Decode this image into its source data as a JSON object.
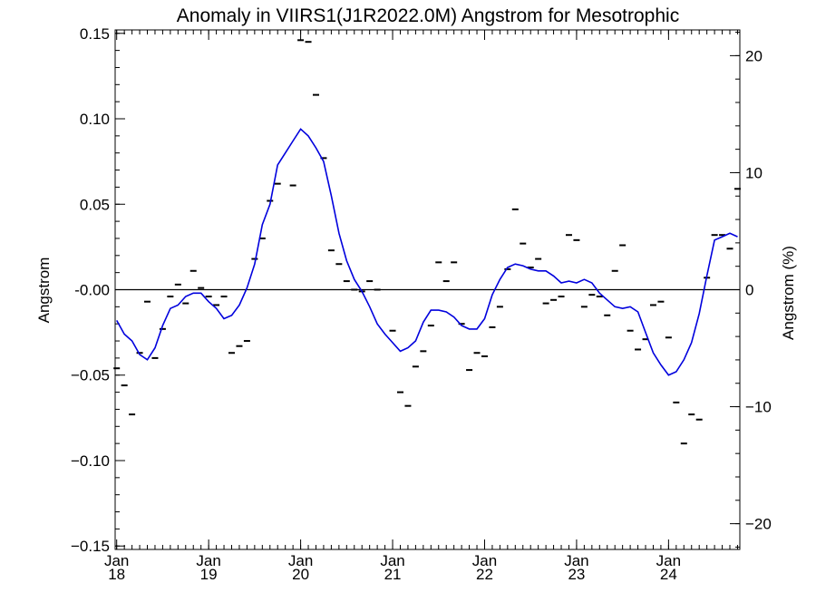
{
  "chart_data": {
    "type": "line",
    "title": "Anomaly in VIIRS1(J1R2022.0M) Angstrom for Mesotrophic",
    "ylabel": "Angstrom",
    "y2label": "Angstrom (%)",
    "ylim": [
      -0.152,
      0.152
    ],
    "y2lim": [
      -22.2,
      22.2
    ],
    "xlim": [
      "2018-01",
      "2024-10"
    ],
    "grid": false,
    "yticks": [
      {
        "value": 0.15,
        "label": "0.15"
      },
      {
        "value": 0.1,
        "label": "0.10"
      },
      {
        "value": 0.05,
        "label": "0.05"
      },
      {
        "value": 0.0,
        "label": "-0.00"
      },
      {
        "value": -0.05,
        "label": "−0.05"
      },
      {
        "value": -0.1,
        "label": "−0.10"
      },
      {
        "value": -0.15,
        "label": "−0.15"
      }
    ],
    "y2ticks": [
      {
        "value": 20,
        "label": "20"
      },
      {
        "value": 10,
        "label": "10"
      },
      {
        "value": 0,
        "label": "0"
      },
      {
        "value": -10,
        "label": "−10"
      },
      {
        "value": -20,
        "label": "−20"
      }
    ],
    "xticks": [
      {
        "date": "2018-01",
        "month": "Jan",
        "year": "18"
      },
      {
        "date": "2019-01",
        "month": "Jan",
        "year": "19"
      },
      {
        "date": "2020-01",
        "month": "Jan",
        "year": "20"
      },
      {
        "date": "2021-01",
        "month": "Jan",
        "year": "21"
      },
      {
        "date": "2022-01",
        "month": "Jan",
        "year": "22"
      },
      {
        "date": "2023-01",
        "month": "Jan",
        "year": "23"
      },
      {
        "date": "2024-01",
        "month": "Jan",
        "year": "24"
      }
    ],
    "colors": {
      "line": "#0000dd",
      "points": "#000000",
      "zero_line": "#000000"
    },
    "series": [
      {
        "style": "dash-markers",
        "points": [
          [
            "2018-01",
            -0.046
          ],
          [
            "2018-02",
            -0.056
          ],
          [
            "2018-03",
            -0.073
          ],
          [
            "2018-04",
            -0.037
          ],
          [
            "2018-05",
            -0.007
          ],
          [
            "2018-06",
            -0.04
          ],
          [
            "2018-07",
            -0.023
          ],
          [
            "2018-08",
            -0.004
          ],
          [
            "2018-09",
            0.003
          ],
          [
            "2018-10",
            -0.008
          ],
          [
            "2018-11",
            0.011
          ],
          [
            "2018-12",
            0.001
          ],
          [
            "2019-01",
            -0.004
          ],
          [
            "2019-02",
            -0.009
          ],
          [
            "2019-03",
            -0.004
          ],
          [
            "2019-04",
            -0.037
          ],
          [
            "2019-05",
            -0.033
          ],
          [
            "2019-06",
            -0.03
          ],
          [
            "2019-07",
            0.018
          ],
          [
            "2019-08",
            0.03
          ],
          [
            "2019-09",
            0.052
          ],
          [
            "2019-10",
            0.062
          ],
          [
            "2019-12",
            0.061
          ],
          [
            "2020-01",
            0.146
          ],
          [
            "2020-02",
            0.145
          ],
          [
            "2020-03",
            0.114
          ],
          [
            "2020-04",
            0.077
          ],
          [
            "2020-05",
            0.023
          ],
          [
            "2020-06",
            0.015
          ],
          [
            "2020-07",
            0.005
          ],
          [
            "2020-08",
            0.0
          ],
          [
            "2020-09",
            -0.001
          ],
          [
            "2020-10",
            0.005
          ],
          [
            "2020-11",
            0.0
          ],
          [
            "2021-01",
            -0.024
          ],
          [
            "2021-02",
            -0.06
          ],
          [
            "2021-03",
            -0.068
          ],
          [
            "2021-04",
            -0.045
          ],
          [
            "2021-05",
            -0.036
          ],
          [
            "2021-06",
            -0.021
          ],
          [
            "2021-07",
            0.016
          ],
          [
            "2021-08",
            0.005
          ],
          [
            "2021-09",
            0.016
          ],
          [
            "2021-10",
            -0.02
          ],
          [
            "2021-11",
            -0.047
          ],
          [
            "2021-12",
            -0.037
          ],
          [
            "2022-01",
            -0.039
          ],
          [
            "2022-02",
            -0.022
          ],
          [
            "2022-03",
            -0.01
          ],
          [
            "2022-04",
            0.012
          ],
          [
            "2022-05",
            0.047
          ],
          [
            "2022-06",
            0.027
          ],
          [
            "2022-07",
            0.013
          ],
          [
            "2022-08",
            0.018
          ],
          [
            "2022-09",
            -0.008
          ],
          [
            "2022-10",
            -0.006
          ],
          [
            "2022-11",
            -0.004
          ],
          [
            "2022-12",
            0.032
          ],
          [
            "2023-01",
            0.029
          ],
          [
            "2023-02",
            -0.01
          ],
          [
            "2023-03",
            -0.003
          ],
          [
            "2023-04",
            -0.004
          ],
          [
            "2023-05",
            -0.015
          ],
          [
            "2023-06",
            0.011
          ],
          [
            "2023-07",
            0.026
          ],
          [
            "2023-08",
            -0.024
          ],
          [
            "2023-09",
            -0.035
          ],
          [
            "2023-10",
            -0.029
          ],
          [
            "2023-11",
            -0.009
          ],
          [
            "2023-12",
            -0.007
          ],
          [
            "2024-01",
            -0.028
          ],
          [
            "2024-02",
            -0.066
          ],
          [
            "2024-03",
            -0.09
          ],
          [
            "2024-04",
            -0.073
          ],
          [
            "2024-05",
            -0.076
          ],
          [
            "2024-06",
            0.007
          ],
          [
            "2024-07",
            0.032
          ],
          [
            "2024-08",
            0.032
          ],
          [
            "2024-09",
            0.024
          ],
          [
            "2024-10",
            0.059
          ]
        ]
      },
      {
        "style": "line",
        "points": [
          [
            "2018-01",
            -0.018
          ],
          [
            "2018-02",
            -0.026
          ],
          [
            "2018-03",
            -0.03
          ],
          [
            "2018-04",
            -0.038
          ],
          [
            "2018-05",
            -0.041
          ],
          [
            "2018-06",
            -0.034
          ],
          [
            "2018-07",
            -0.021
          ],
          [
            "2018-08",
            -0.011
          ],
          [
            "2018-09",
            -0.009
          ],
          [
            "2018-10",
            -0.004
          ],
          [
            "2018-11",
            -0.002
          ],
          [
            "2018-12",
            -0.002
          ],
          [
            "2019-01",
            -0.007
          ],
          [
            "2019-02",
            -0.011
          ],
          [
            "2019-03",
            -0.017
          ],
          [
            "2019-04",
            -0.015
          ],
          [
            "2019-05",
            -0.009
          ],
          [
            "2019-06",
            0.001
          ],
          [
            "2019-07",
            0.015
          ],
          [
            "2019-08",
            0.038
          ],
          [
            "2019-09",
            0.05
          ],
          [
            "2019-10",
            0.073
          ],
          [
            "2019-11",
            0.08
          ],
          [
            "2019-12",
            0.087
          ],
          [
            "2020-01",
            0.094
          ],
          [
            "2020-02",
            0.09
          ],
          [
            "2020-03",
            0.083
          ],
          [
            "2020-04",
            0.075
          ],
          [
            "2020-05",
            0.055
          ],
          [
            "2020-06",
            0.033
          ],
          [
            "2020-07",
            0.017
          ],
          [
            "2020-08",
            0.006
          ],
          [
            "2020-09",
            -0.001
          ],
          [
            "2020-10",
            -0.01
          ],
          [
            "2020-11",
            -0.02
          ],
          [
            "2020-12",
            -0.026
          ],
          [
            "2021-01",
            -0.031
          ],
          [
            "2021-02",
            -0.036
          ],
          [
            "2021-03",
            -0.034
          ],
          [
            "2021-04",
            -0.03
          ],
          [
            "2021-05",
            -0.019
          ],
          [
            "2021-06",
            -0.012
          ],
          [
            "2021-07",
            -0.012
          ],
          [
            "2021-08",
            -0.013
          ],
          [
            "2021-09",
            -0.016
          ],
          [
            "2021-10",
            -0.021
          ],
          [
            "2021-11",
            -0.023
          ],
          [
            "2021-12",
            -0.023
          ],
          [
            "2022-01",
            -0.017
          ],
          [
            "2022-02",
            -0.003
          ],
          [
            "2022-03",
            0.006
          ],
          [
            "2022-04",
            0.013
          ],
          [
            "2022-05",
            0.015
          ],
          [
            "2022-06",
            0.014
          ],
          [
            "2022-07",
            0.012
          ],
          [
            "2022-08",
            0.011
          ],
          [
            "2022-09",
            0.011
          ],
          [
            "2022-10",
            0.008
          ],
          [
            "2022-11",
            0.004
          ],
          [
            "2022-12",
            0.005
          ],
          [
            "2023-01",
            0.004
          ],
          [
            "2023-02",
            0.006
          ],
          [
            "2023-03",
            0.004
          ],
          [
            "2023-04",
            -0.002
          ],
          [
            "2023-05",
            -0.006
          ],
          [
            "2023-06",
            -0.01
          ],
          [
            "2023-07",
            -0.011
          ],
          [
            "2023-08",
            -0.01
          ],
          [
            "2023-09",
            -0.013
          ],
          [
            "2023-10",
            -0.025
          ],
          [
            "2023-11",
            -0.037
          ],
          [
            "2023-12",
            -0.044
          ],
          [
            "2024-01",
            -0.05
          ],
          [
            "2024-02",
            -0.048
          ],
          [
            "2024-03",
            -0.041
          ],
          [
            "2024-04",
            -0.031
          ],
          [
            "2024-05",
            -0.014
          ],
          [
            "2024-06",
            0.008
          ],
          [
            "2024-07",
            0.029
          ],
          [
            "2024-08",
            0.031
          ],
          [
            "2024-09",
            0.033
          ],
          [
            "2024-10",
            0.031
          ]
        ]
      }
    ]
  }
}
